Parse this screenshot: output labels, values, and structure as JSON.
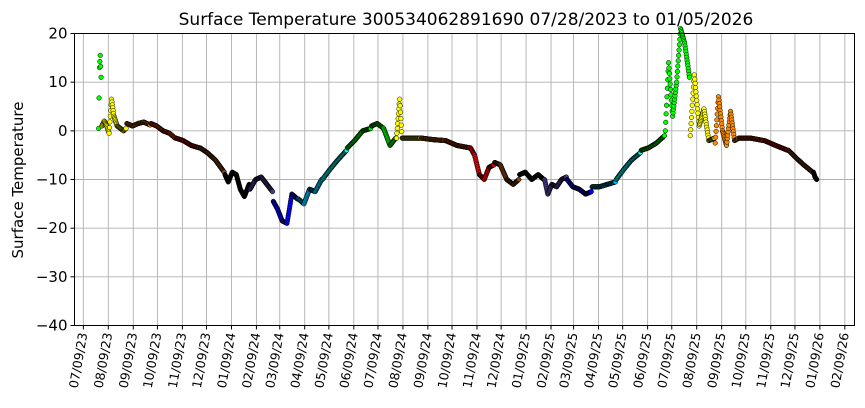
{
  "chart_data": {
    "type": "scatter",
    "title": "Surface Temperature 300534062891690  07/28/2023 to 01/05/2026",
    "xlabel": "",
    "ylabel": "Surface Temperature",
    "ylim": [
      -40,
      20
    ],
    "yticks": [
      "20",
      "10",
      "0",
      "−10",
      "−20",
      "−30",
      "−40"
    ],
    "ytick_values": [
      20,
      10,
      0,
      -10,
      -20,
      -30,
      -40
    ],
    "xlim": [
      "2023-06-28",
      "2026-02-21"
    ],
    "xticks": [
      "07/09/23",
      "08/09/23",
      "09/09/23",
      "10/09/23",
      "11/09/23",
      "12/09/23",
      "01/09/24",
      "02/09/24",
      "03/09/24",
      "04/09/24",
      "05/09/24",
      "06/09/24",
      "07/09/24",
      "08/09/24",
      "09/09/24",
      "10/09/24",
      "11/09/24",
      "12/09/24",
      "01/09/25",
      "02/09/25",
      "03/09/25",
      "04/09/25",
      "05/09/25",
      "06/09/25",
      "07/09/25",
      "08/09/25",
      "09/09/25",
      "10/09/25",
      "11/09/25",
      "12/09/25",
      "01/09/26",
      "02/09/26"
    ],
    "xtick_dates": [
      "2023-07-09",
      "2023-08-09",
      "2023-09-09",
      "2023-10-09",
      "2023-11-09",
      "2023-12-09",
      "2024-01-09",
      "2024-02-09",
      "2024-03-09",
      "2024-04-09",
      "2024-05-09",
      "2024-06-09",
      "2024-07-09",
      "2024-08-09",
      "2024-09-09",
      "2024-10-09",
      "2024-11-09",
      "2024-12-09",
      "2025-01-09",
      "2025-02-09",
      "2025-03-09",
      "2025-04-09",
      "2025-05-09",
      "2025-06-09",
      "2025-07-09",
      "2025-08-09",
      "2025-09-09",
      "2025-10-09",
      "2025-11-09",
      "2025-12-09",
      "2026-01-09",
      "2026-02-09"
    ],
    "grid": true,
    "marker_edge": "#000000",
    "series": [
      {
        "color": "#00ff00",
        "x": [
          "2023-07-28",
          "2023-07-29",
          "2023-07-30",
          "2023-07-31"
        ],
        "y": [
          0.5,
          13,
          15.5,
          11
        ]
      },
      {
        "color": "#ffff00",
        "x": [
          "2023-08-01",
          "2023-08-04",
          "2023-08-07",
          "2023-08-10",
          "2023-08-13",
          "2023-08-16",
          "2023-08-20",
          "2023-08-24",
          "2023-08-28",
          "2023-08-31"
        ],
        "y": [
          1,
          2,
          1,
          -0.5,
          6.5,
          3,
          1,
          0.5,
          0,
          0.5
        ]
      },
      {
        "color": "#ff8c00",
        "x": [
          "2023-09-01",
          "2023-09-08",
          "2023-09-15",
          "2023-09-22",
          "2023-09-30"
        ],
        "y": [
          1.5,
          1,
          1.5,
          1.8,
          1.2
        ]
      },
      {
        "color": "#ff4500",
        "x": [
          "2023-10-01",
          "2023-10-08",
          "2023-10-16",
          "2023-10-24",
          "2023-10-31"
        ],
        "y": [
          1.5,
          1,
          0,
          -0.5,
          -1.5
        ]
      },
      {
        "color": "#ff0000",
        "x": [
          "2023-11-01",
          "2023-11-10",
          "2023-11-20",
          "2023-11-30"
        ],
        "y": [
          -1.5,
          -2,
          -3,
          -3.5
        ]
      },
      {
        "color": "#8b4513",
        "x": [
          "2023-12-01",
          "2023-12-10",
          "2023-12-20",
          "2023-12-31"
        ],
        "y": [
          -3.5,
          -4.5,
          -6,
          -8.5
        ]
      },
      {
        "color": "#000000",
        "x": [
          "2024-01-01",
          "2024-01-05",
          "2024-01-10",
          "2024-01-15",
          "2024-01-20",
          "2024-01-25",
          "2024-01-31"
        ],
        "y": [
          -9,
          -10.5,
          -8.5,
          -9,
          -12,
          -13.5,
          -11
        ]
      },
      {
        "color": "#483d8b",
        "x": [
          "2024-02-01",
          "2024-02-08",
          "2024-02-15",
          "2024-02-22",
          "2024-02-29"
        ],
        "y": [
          -12,
          -10,
          -9.5,
          -11,
          -12.5
        ]
      },
      {
        "color": "#0000ff",
        "x": [
          "2024-03-01",
          "2024-03-06",
          "2024-03-12",
          "2024-03-18",
          "2024-03-24",
          "2024-03-31"
        ],
        "y": [
          -14.5,
          -16,
          -18.5,
          -19,
          -13,
          -14
        ]
      },
      {
        "color": "#00bfff",
        "x": [
          "2024-04-01",
          "2024-04-08",
          "2024-04-15",
          "2024-04-22",
          "2024-04-30"
        ],
        "y": [
          -14,
          -15,
          -12,
          -12.5,
          -10
        ]
      },
      {
        "color": "#00ffff",
        "x": [
          "2024-05-01",
          "2024-05-10",
          "2024-05-20",
          "2024-05-31"
        ],
        "y": [
          -10,
          -8,
          -6,
          -4
        ]
      },
      {
        "color": "#00ff00",
        "x": [
          "2024-06-01",
          "2024-06-10",
          "2024-06-20",
          "2024-06-30"
        ],
        "y": [
          -3.5,
          -2,
          0,
          0.5
        ]
      },
      {
        "color": "#00ff00",
        "x": [
          "2024-07-01",
          "2024-07-08",
          "2024-07-16",
          "2024-07-24",
          "2024-07-31"
        ],
        "y": [
          1,
          1.5,
          0.5,
          -3,
          -1.5
        ]
      },
      {
        "color": "#ffff00",
        "x": [
          "2024-08-01",
          "2024-08-05",
          "2024-08-08",
          "2024-08-15",
          "2024-08-31"
        ],
        "y": [
          -1.5,
          6.5,
          -1.5,
          -1.5,
          -1.5
        ]
      },
      {
        "color": "#ff8c00",
        "x": [
          "2024-09-01",
          "2024-09-15",
          "2024-09-30"
        ],
        "y": [
          -1.5,
          -1.8,
          -2
        ]
      },
      {
        "color": "#ff4500",
        "x": [
          "2024-10-01",
          "2024-10-15",
          "2024-10-31"
        ],
        "y": [
          -2,
          -3,
          -3.5
        ]
      },
      {
        "color": "#ff0000",
        "x": [
          "2024-11-01",
          "2024-11-06",
          "2024-11-12",
          "2024-11-18",
          "2024-11-24",
          "2024-11-30"
        ],
        "y": [
          -3.5,
          -5,
          -9,
          -10,
          -7.5,
          -7
        ]
      },
      {
        "color": "#8b4513",
        "x": [
          "2024-12-01",
          "2024-12-08",
          "2024-12-16",
          "2024-12-24",
          "2024-12-31"
        ],
        "y": [
          -6.5,
          -7,
          -10,
          -11,
          -10
        ]
      },
      {
        "color": "#000000",
        "x": [
          "2025-01-01",
          "2025-01-08",
          "2025-01-16",
          "2025-01-24",
          "2025-01-31"
        ],
        "y": [
          -9,
          -8.5,
          -10,
          -9,
          -10
        ]
      },
      {
        "color": "#483d8b",
        "x": [
          "2025-02-01",
          "2025-02-05",
          "2025-02-10",
          "2025-02-16",
          "2025-02-22",
          "2025-02-28"
        ],
        "y": [
          -10,
          -13,
          -11,
          -11.5,
          -10,
          -9.5
        ]
      },
      {
        "color": "#0000ff",
        "x": [
          "2025-03-01",
          "2025-03-08",
          "2025-03-16",
          "2025-03-24",
          "2025-03-31"
        ],
        "y": [
          -10,
          -11.5,
          -12,
          -13,
          -12.5
        ]
      },
      {
        "color": "#00bfff",
        "x": [
          "2025-04-01",
          "2025-04-10",
          "2025-04-20",
          "2025-04-30"
        ],
        "y": [
          -11.5,
          -11.5,
          -11,
          -10.5
        ]
      },
      {
        "color": "#00ffff",
        "x": [
          "2025-05-01",
          "2025-05-10",
          "2025-05-20",
          "2025-05-31"
        ],
        "y": [
          -10,
          -8,
          -6,
          -4.5
        ]
      },
      {
        "color": "#00ff00",
        "x": [
          "2025-06-01",
          "2025-06-10",
          "2025-06-20",
          "2025-06-30"
        ],
        "y": [
          -4,
          -3.5,
          -2.5,
          -1
        ]
      },
      {
        "color": "#00ff00",
        "x": [
          "2025-07-01",
          "2025-07-05",
          "2025-07-10",
          "2025-07-15",
          "2025-07-20",
          "2025-07-25",
          "2025-07-31"
        ],
        "y": [
          0,
          14,
          3,
          10,
          21,
          18,
          11
        ]
      },
      {
        "color": "#ffff00",
        "x": [
          "2025-08-01",
          "2025-08-06",
          "2025-08-12",
          "2025-08-18",
          "2025-08-24",
          "2025-08-31"
        ],
        "y": [
          -1,
          11.5,
          1,
          4.5,
          -2,
          -1.5
        ]
      },
      {
        "color": "#ff8c00",
        "x": [
          "2025-09-01",
          "2025-09-05",
          "2025-09-10",
          "2025-09-15",
          "2025-09-20",
          "2025-09-25",
          "2025-09-30"
        ],
        "y": [
          -2.5,
          7,
          0,
          -3,
          4,
          -2,
          -1.5
        ]
      },
      {
        "color": "#ff4500",
        "x": [
          "2025-10-01",
          "2025-10-15",
          "2025-10-31"
        ],
        "y": [
          -1.5,
          -1.5,
          -2
        ]
      },
      {
        "color": "#ff0000",
        "x": [
          "2025-11-01",
          "2025-11-15",
          "2025-11-30"
        ],
        "y": [
          -2,
          -3,
          -4
        ]
      },
      {
        "color": "#8b4513",
        "x": [
          "2025-12-01",
          "2025-12-10",
          "2025-12-20",
          "2025-12-31"
        ],
        "y": [
          -4,
          -5.5,
          -7,
          -8.5
        ]
      },
      {
        "color": "#000000",
        "x": [
          "2026-01-01",
          "2026-01-03",
          "2026-01-05"
        ],
        "y": [
          -8.5,
          -9.5,
          -10
        ]
      }
    ]
  }
}
